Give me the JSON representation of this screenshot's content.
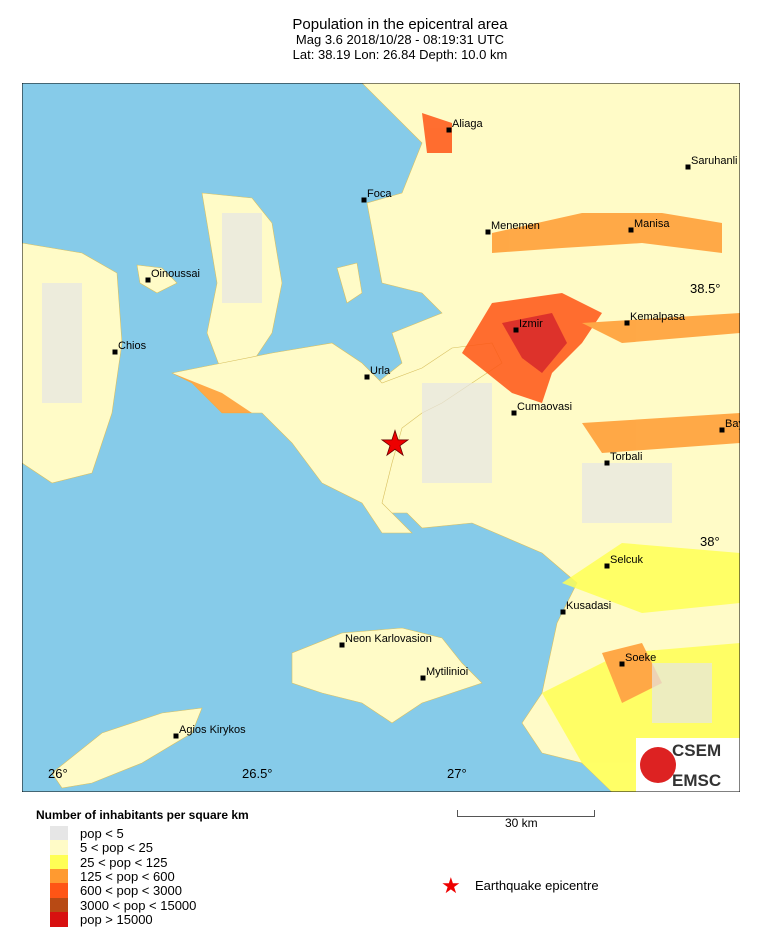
{
  "title": {
    "line1": "Population in the epicentral area",
    "line2": "Mag 3.6  2018/10/28 - 08:19:31 UTC",
    "line3": "Lat: 38.19    Lon:  26.84     Depth:  10.0 km"
  },
  "map": {
    "sea_color": "#86cbe9",
    "cities": [
      {
        "name": "Aliaga"
      },
      {
        "name": "Foca"
      },
      {
        "name": "Menemen"
      },
      {
        "name": "Saruhanli"
      },
      {
        "name": "Manisa"
      },
      {
        "name": "Oinoussai"
      },
      {
        "name": "Chios"
      },
      {
        "name": "Izmir"
      },
      {
        "name": "Kemalpasa"
      },
      {
        "name": "Urla"
      },
      {
        "name": "Cumaovasi"
      },
      {
        "name": "Bay"
      },
      {
        "name": "Torbali"
      },
      {
        "name": "Selcuk"
      },
      {
        "name": "Kusadasi"
      },
      {
        "name": "Soeke"
      },
      {
        "name": "Neon Karlovasion"
      },
      {
        "name": "Mytilinioi"
      },
      {
        "name": "Agios Kirykos"
      }
    ],
    "lat_labels": [
      "38.5°",
      "38°"
    ],
    "lon_labels": [
      "26°",
      "26.5°",
      "27°"
    ],
    "epicentre": {
      "lat": 38.19,
      "lon": 26.84,
      "icon": "red-star-icon"
    },
    "logo": {
      "top": "CSEM",
      "bottom": "EMSC"
    }
  },
  "legend": {
    "title": "Number of inhabitants per square km",
    "items": [
      {
        "label": "pop < 5",
        "color": "#e6e6e6"
      },
      {
        "label": "5 < pop < 25",
        "color": "#fffbc7"
      },
      {
        "label": "25 < pop < 125",
        "color": "#ffff55"
      },
      {
        "label": "125 < pop < 600",
        "color": "#ff9a30"
      },
      {
        "label": "600 < pop < 3000",
        "color": "#ff5515"
      },
      {
        "label": "3000 < pop < 15000",
        "color": "#b84a14"
      },
      {
        "label": "pop > 15000",
        "color": "#d81010"
      }
    ],
    "scale_label": "30 km",
    "epicentre_label": "Earthquake epicentre"
  }
}
